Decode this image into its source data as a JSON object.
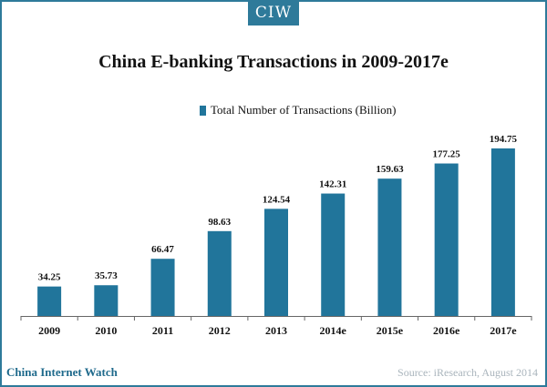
{
  "brand": {
    "badge": "CIW",
    "footer_left": "China Internet Watch",
    "footer_right": "Source: iResearch,  August  2014"
  },
  "chart_data": {
    "type": "bar",
    "title": "China E-banking Transactions in 2009-2017e",
    "categories": [
      "2009",
      "2010",
      "2011",
      "2012",
      "2013",
      "2014e",
      "2015e",
      "2016e",
      "2017e"
    ],
    "series": [
      {
        "name": "Total Number of Transactions (Billion)",
        "values": [
          34.25,
          35.73,
          66.47,
          98.63,
          124.54,
          142.31,
          159.63,
          177.25,
          194.75
        ]
      }
    ],
    "value_labels": [
      "34.25",
      "35.73",
      "66.47",
      "98.63",
      "124.54",
      "142.31",
      "159.63",
      "177.25",
      "194.75"
    ],
    "ylim": [
      0,
      194.75
    ],
    "grid": false,
    "legend_position": "top-center",
    "bar_color": "#21759b"
  }
}
